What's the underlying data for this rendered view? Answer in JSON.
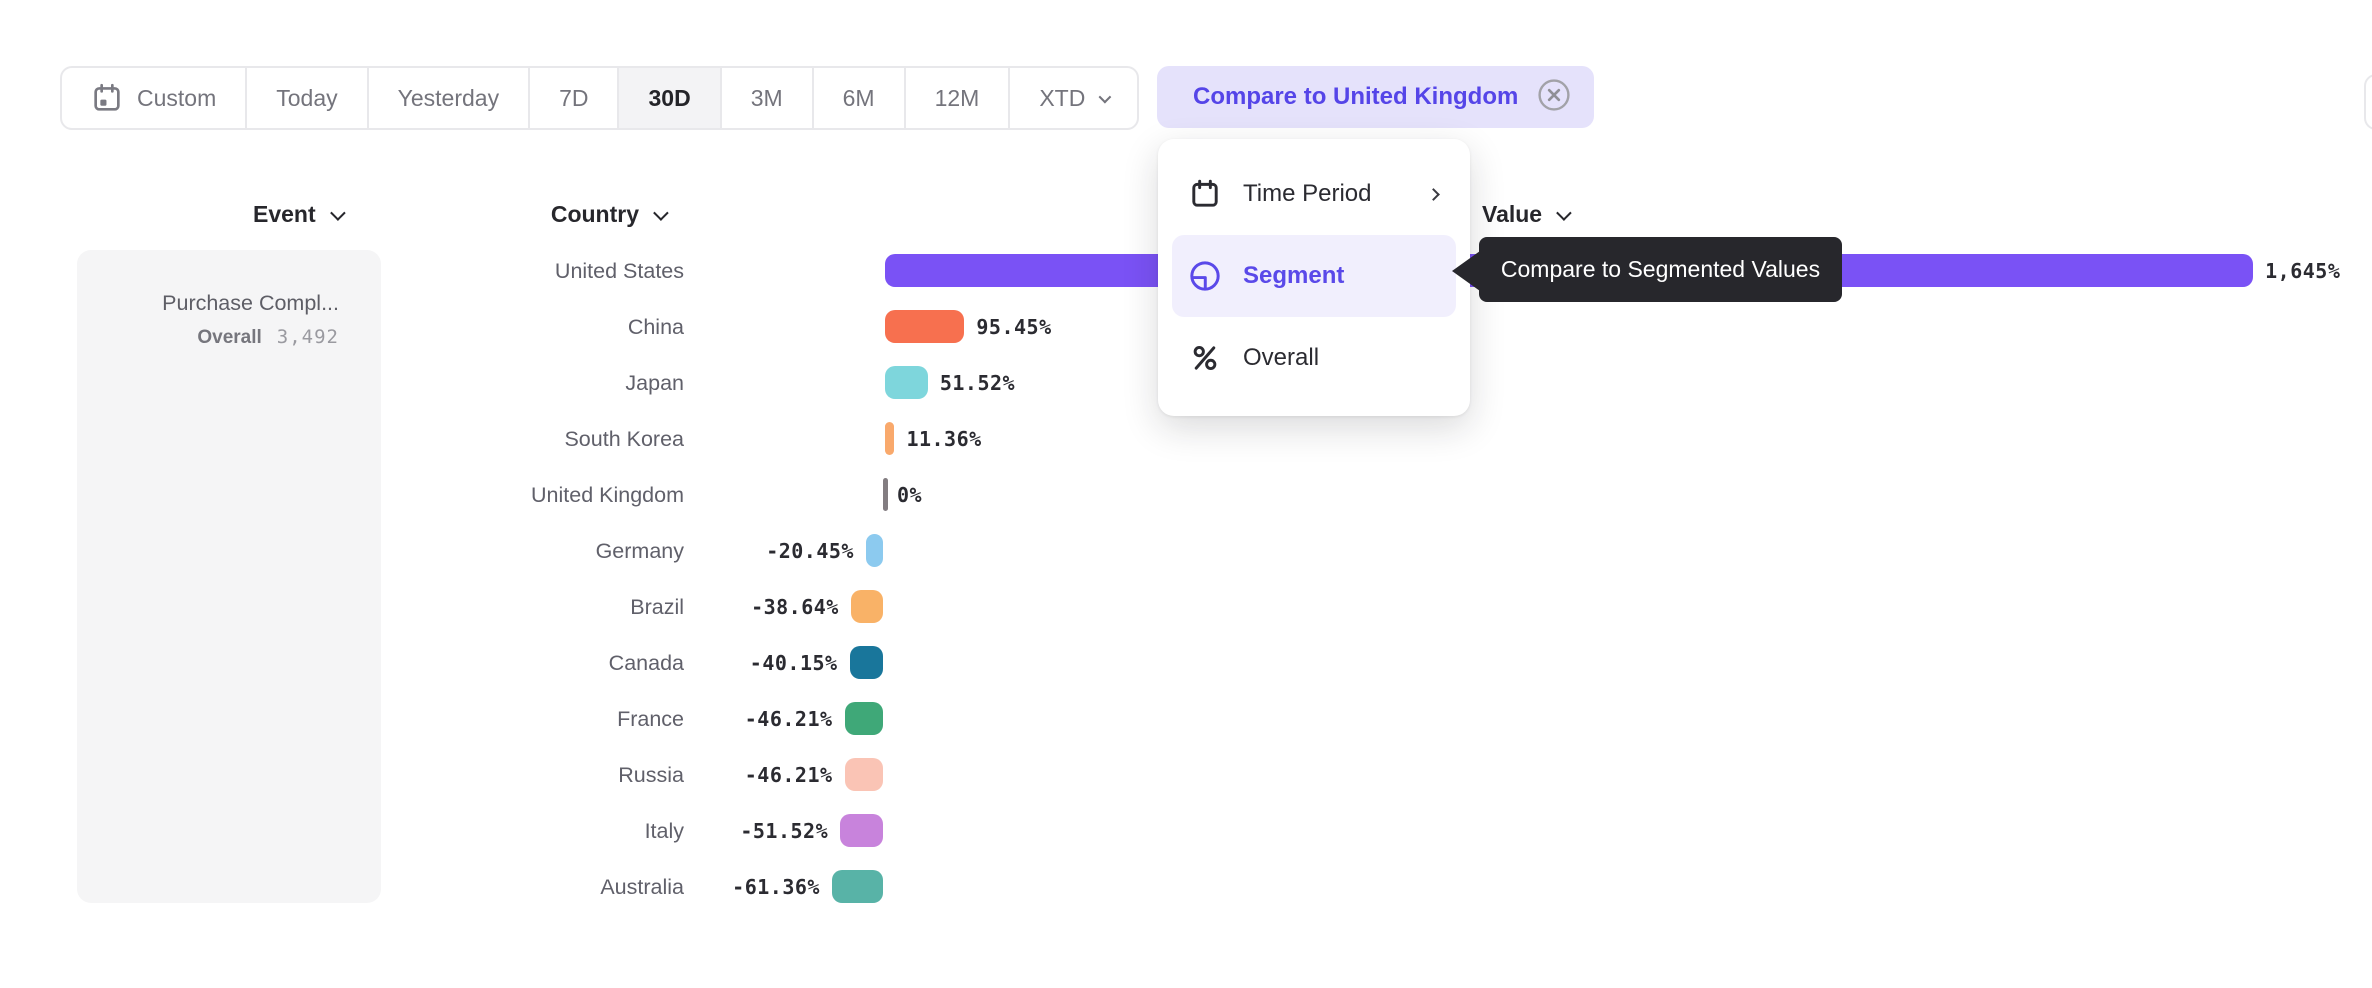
{
  "toolbar": {
    "items": [
      {
        "label": "Custom"
      },
      {
        "label": "Today"
      },
      {
        "label": "Yesterday"
      },
      {
        "label": "7D"
      },
      {
        "label": "30D"
      },
      {
        "label": "3M"
      },
      {
        "label": "6M"
      },
      {
        "label": "12M"
      },
      {
        "label": "XTD"
      }
    ],
    "selected": "30D",
    "compare_button": {
      "label": "Compare to United Kingdom"
    }
  },
  "columns": {
    "event": "Event",
    "country": "Country",
    "value": "Value"
  },
  "event_card": {
    "title": "Purchase Compl...",
    "overall_label": "Overall",
    "overall_value": "3,492"
  },
  "menu": {
    "items": [
      {
        "label": "Time Period",
        "icon": "calendar-icon",
        "has_submenu": true
      },
      {
        "label": "Segment",
        "icon": "segment-icon",
        "active": true
      },
      {
        "label": "Overall",
        "icon": "percent-icon"
      }
    ]
  },
  "tooltip": {
    "text": "Compare to Segmented Values"
  },
  "colors": {
    "accent_purple": "#5A49E9",
    "compare_chip_bg": "#E5E2FB",
    "menu_highlight_bg": "#F1EFFD",
    "tooltip_bg": "#27272C",
    "selected_segment_bg": "#F3F3F5"
  },
  "chart_data": {
    "type": "bar",
    "orientation": "horizontal",
    "categories": [
      "United States",
      "China",
      "Japan",
      "South Korea",
      "United Kingdom",
      "Germany",
      "Brazil",
      "Canada",
      "France",
      "Russia",
      "Italy",
      "Australia"
    ],
    "values": [
      1645,
      95.45,
      51.52,
      11.36,
      0,
      -20.45,
      -38.64,
      -40.15,
      -46.21,
      -46.21,
      -51.52,
      -61.36
    ],
    "value_labels": [
      "1,645%",
      "95.45%",
      "51.52%",
      "11.36%",
      "0%",
      "-20.45%",
      "-38.64%",
      "-40.15%",
      "-46.21%",
      "-46.21%",
      "-51.52%",
      "-61.36%"
    ],
    "bar_colors": [
      "#7A52F5",
      "#F7704F",
      "#7ED6DC",
      "#F9A96C",
      "#837D81",
      "#8CCAEF",
      "#F9B267",
      "#19769B",
      "#3FA878",
      "#FAC4B5",
      "#C883DC",
      "#58B3A7"
    ],
    "bar_textures": [
      "solid",
      "solid",
      "solid",
      "solid",
      "baseline-tick",
      "dotted",
      "dotted",
      "solid",
      "solid",
      "solid",
      "solid",
      "solid"
    ],
    "baseline_category": "United Kingdom",
    "x_axis": {
      "unit": "%",
      "zero_baseline": true,
      "min": -61.36,
      "max": 1645
    },
    "legend": "none",
    "grid": "off"
  }
}
